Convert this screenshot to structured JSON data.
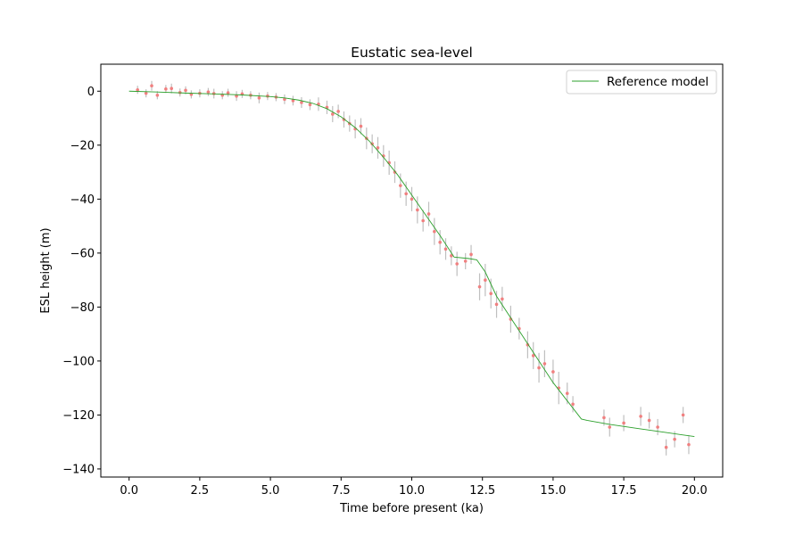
{
  "chart_data": {
    "type": "scatter",
    "title": "Eustatic sea-level",
    "xlabel": "Time before present (ka)",
    "ylabel": "ESL height (m)",
    "xlim": [
      -1.0,
      21.0
    ],
    "ylim": [
      -143,
      10
    ],
    "xticks": [
      0.0,
      2.5,
      5.0,
      7.5,
      10.0,
      12.5,
      15.0,
      17.5,
      20.0
    ],
    "xtick_labels": [
      "0.0",
      "2.5",
      "5.0",
      "7.5",
      "10.0",
      "12.5",
      "15.0",
      "17.5",
      "20.0"
    ],
    "yticks": [
      0,
      -20,
      -40,
      -60,
      -80,
      -100,
      -120,
      -140
    ],
    "ytick_labels": [
      "0",
      "−20",
      "−40",
      "−60",
      "−80",
      "−100",
      "−120",
      "−140"
    ],
    "grid": false,
    "legend": {
      "placement": "top-right",
      "entries": [
        "Reference model"
      ]
    },
    "colors": {
      "observations": "#f08080",
      "error_bars": "#bfbfbf",
      "reference_model": "#2ca02c"
    },
    "series": [
      {
        "kind": "line",
        "name": "Reference model",
        "x": [
          0.0,
          1.0,
          2.0,
          3.0,
          4.0,
          5.0,
          5.5,
          6.0,
          6.5,
          7.0,
          7.5,
          8.0,
          8.5,
          9.0,
          9.5,
          10.0,
          10.5,
          11.0,
          11.5,
          12.0,
          12.3,
          12.6,
          13.0,
          14.0,
          15.0,
          16.0,
          16.2,
          17.0,
          18.0,
          19.0,
          20.0
        ],
        "y": [
          0,
          -0.3,
          -0.7,
          -1.0,
          -1.4,
          -2.0,
          -2.5,
          -3.3,
          -4.5,
          -6.5,
          -9.5,
          -13.5,
          -18.5,
          -24.5,
          -31,
          -38.5,
          -46,
          -53.5,
          -61.5,
          -62,
          -62.5,
          -67,
          -76,
          -92,
          -108,
          -121.5,
          -122,
          -123.5,
          -125,
          -126.5,
          -128
        ]
      },
      {
        "kind": "scatter",
        "name": "",
        "note_free": true,
        "x": [
          0.3,
          0.6,
          0.8,
          1.0,
          1.3,
          1.5,
          1.8,
          2.0,
          2.2,
          2.5,
          2.8,
          3.0,
          3.3,
          3.5,
          3.8,
          4.0,
          4.3,
          4.6,
          4.9,
          5.2,
          5.5,
          5.8,
          6.1,
          6.4,
          6.7,
          7.0,
          7.2,
          7.4,
          7.6,
          7.8,
          8.0,
          8.2,
          8.4,
          8.6,
          8.8,
          9.0,
          9.2,
          9.4,
          9.6,
          9.8,
          10.0,
          10.2,
          10.4,
          10.6,
          10.8,
          11.0,
          11.2,
          11.4,
          11.6,
          11.9,
          12.1,
          12.4,
          12.6,
          12.8,
          13.0,
          13.2,
          13.5,
          13.8,
          14.1,
          14.3,
          14.5,
          14.7,
          15.0,
          15.2,
          15.5,
          15.7,
          16.8,
          17.0,
          17.5,
          18.1,
          18.4,
          18.7,
          19.0,
          19.3,
          19.6,
          19.8
        ],
        "y": [
          0.5,
          -0.8,
          2.0,
          -1.5,
          0.8,
          1.0,
          -0.5,
          0.3,
          -1.2,
          -0.8,
          -0.3,
          -0.9,
          -1.5,
          -0.6,
          -1.8,
          -1.0,
          -1.5,
          -2.5,
          -1.8,
          -2.2,
          -3.0,
          -3.5,
          -4.2,
          -5.0,
          -4.8,
          -6.0,
          -8.5,
          -7.5,
          -10.5,
          -12.0,
          -14.0,
          -13.0,
          -17.5,
          -19.5,
          -21.0,
          -24.0,
          -26.5,
          -30.0,
          -35.0,
          -38.0,
          -40.0,
          -44.0,
          -48.0,
          -45.5,
          -52.0,
          -56.0,
          -58.5,
          -61.0,
          -64.0,
          -63.0,
          -60.5,
          -72.5,
          -70.0,
          -75.0,
          -79.0,
          -77.0,
          -84.5,
          -88.0,
          -94.0,
          -98.0,
          -102.5,
          -101.0,
          -104.0,
          -110.0,
          -112.0,
          -116.0,
          -121.0,
          -124.5,
          -123.0,
          -120.5,
          -122.0,
          -124.5,
          -132.0,
          -129.0,
          -120.0,
          -131.0
        ],
        "err": [
          1.5,
          1.5,
          1.8,
          1.5,
          1.5,
          1.8,
          1.5,
          1.5,
          1.5,
          1.5,
          1.5,
          1.8,
          1.5,
          1.5,
          1.8,
          1.5,
          1.5,
          2.0,
          1.5,
          1.5,
          1.8,
          1.8,
          2.0,
          2.0,
          2.5,
          2.5,
          3.0,
          2.5,
          3.0,
          3.0,
          3.5,
          3.0,
          4.0,
          3.5,
          4.0,
          4.0,
          4.5,
          4.0,
          4.5,
          4.5,
          4.5,
          5.0,
          4.0,
          4.5,
          5.0,
          4.5,
          4.0,
          3.5,
          4.5,
          3.0,
          3.5,
          5.0,
          6.0,
          5.5,
          5.0,
          4.5,
          5.0,
          4.0,
          5.0,
          5.0,
          5.5,
          5.0,
          4.5,
          6.0,
          4.0,
          3.0,
          3.0,
          3.5,
          3.0,
          3.5,
          3.0,
          3.0,
          3.0,
          3.0,
          3.0,
          3.5
        ]
      }
    ]
  }
}
